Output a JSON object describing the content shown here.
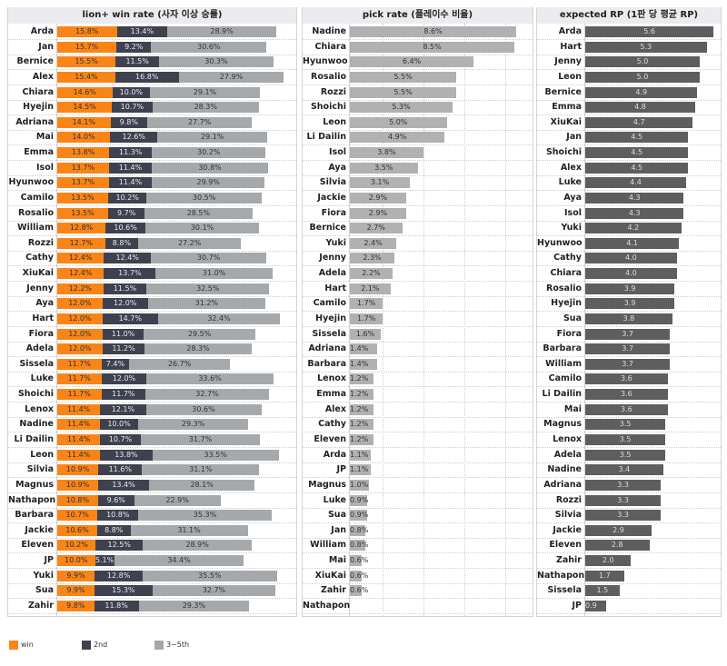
{
  "chart_data": [
    {
      "type": "bar",
      "orientation": "horizontal",
      "stacked": true,
      "title": "lion+ win rate (사자 이상 승률)",
      "categories": [
        "Arda",
        "Jan",
        "Bernice",
        "Alex",
        "Chiara",
        "Hyejin",
        "Adriana",
        "Mai",
        "Emma",
        "Isol",
        "Hyunwoo",
        "Camilo",
        "Rosalio",
        "William",
        "Rozzi",
        "Cathy",
        "XiuKai",
        "Jenny",
        "Aya",
        "Hart",
        "Fiora",
        "Adela",
        "Sissela",
        "Luke",
        "Shoichi",
        "Lenox",
        "Nadine",
        "Li Dailin",
        "Leon",
        "Silvia",
        "Magnus",
        "Nathapon",
        "Barbara",
        "Jackie",
        "Eleven",
        "JP",
        "Yuki",
        "Sua",
        "Zahir"
      ],
      "series": [
        {
          "name": "win",
          "color": "#fa8517",
          "values": [
            15.8,
            15.7,
            15.5,
            15.4,
            14.6,
            14.5,
            14.1,
            14.0,
            13.8,
            13.7,
            13.7,
            13.5,
            13.5,
            12.8,
            12.7,
            12.4,
            12.4,
            12.2,
            12.0,
            12.0,
            12.0,
            12.0,
            11.7,
            11.7,
            11.7,
            11.4,
            11.4,
            11.4,
            11.4,
            10.9,
            10.9,
            10.8,
            10.7,
            10.6,
            10.2,
            10.0,
            9.9,
            9.9,
            9.8
          ]
        },
        {
          "name": "2nd",
          "color": "#40414e",
          "values": [
            13.4,
            9.2,
            11.5,
            16.8,
            10.0,
            10.7,
            9.8,
            12.6,
            11.3,
            11.4,
            11.4,
            10.2,
            9.7,
            10.6,
            8.8,
            12.4,
            13.7,
            11.5,
            12.0,
            14.7,
            11.0,
            11.2,
            7.4,
            12.0,
            11.7,
            12.1,
            10.0,
            10.7,
            13.8,
            11.6,
            13.4,
            9.6,
            10.8,
            8.8,
            12.5,
            5.1,
            12.8,
            15.3,
            11.8
          ]
        },
        {
          "name": "3~5th",
          "color": "#a6a9ac",
          "values": [
            28.9,
            30.6,
            30.3,
            27.9,
            29.1,
            28.3,
            27.7,
            29.1,
            30.2,
            30.8,
            29.9,
            30.5,
            28.5,
            30.1,
            27.2,
            30.7,
            31.0,
            32.5,
            31.2,
            32.4,
            29.5,
            28.3,
            26.7,
            33.6,
            32.7,
            30.6,
            29.3,
            31.7,
            33.5,
            31.1,
            28.1,
            22.9,
            35.3,
            31.1,
            28.9,
            34.4,
            35.5,
            32.7,
            29.3
          ]
        }
      ],
      "legend": "bottom-left"
    },
    {
      "type": "bar",
      "orientation": "horizontal",
      "title": "pick rate (플레이수 비율)",
      "color": "#b1b1b1",
      "categories": [
        "Nadine",
        "Chiara",
        "Hyunwoo",
        "Rosalio",
        "Rozzi",
        "Shoichi",
        "Leon",
        "Li Dailin",
        "Isol",
        "Aya",
        "Silvia",
        "Jackie",
        "Fiora",
        "Bernice",
        "Yuki",
        "Jenny",
        "Adela",
        "Hart",
        "Camilo",
        "Hyejin",
        "Sissela",
        "Adriana",
        "Barbara",
        "Lenox",
        "Emma",
        "Alex",
        "Cathy",
        "Eleven",
        "Arda",
        "JP",
        "Magnus",
        "Luke",
        "Sua",
        "Jan",
        "William",
        "Mai",
        "XiuKai",
        "Zahir",
        "Nathapon"
      ],
      "values": [
        8.6,
        8.5,
        6.4,
        5.5,
        5.5,
        5.3,
        5.0,
        4.9,
        3.8,
        3.5,
        3.1,
        2.9,
        2.9,
        2.7,
        2.4,
        2.3,
        2.2,
        2.1,
        1.7,
        1.7,
        1.6,
        1.4,
        1.4,
        1.2,
        1.2,
        1.2,
        1.2,
        1.2,
        1.1,
        1.1,
        1.0,
        0.9,
        0.9,
        0.8,
        0.8,
        0.6,
        0.6,
        0.6,
        null
      ],
      "labels": [
        "8.6%",
        "8.5%",
        "6.4%",
        "5.5%",
        "5.5%",
        "5.3%",
        "5.0%",
        "4.9%",
        "3.8%",
        "3.5%",
        "3.1%",
        "2.9%",
        "2.9%",
        "2.7%",
        "2.4%",
        "2.3%",
        "2.2%",
        "2.1%",
        "1.7%",
        "1.7%",
        "1.6%",
        "1.4%",
        "1.4%",
        "1.2%",
        "1.2%",
        "1.2%",
        "1.2%",
        "1.2%",
        "1.1%",
        "1.1%",
        "1.0%",
        "0.9%",
        "0.9%",
        "0.8%",
        "0.8%",
        "0.6%",
        "0.6%",
        "0.6%",
        ""
      ]
    },
    {
      "type": "bar",
      "orientation": "horizontal",
      "title": "expected RP (1판 당 평균 RP)",
      "color": "#5e5e5e",
      "categories": [
        "Arda",
        "Hart",
        "Jenny",
        "Leon",
        "Bernice",
        "Emma",
        "XiuKai",
        "Jan",
        "Shoichi",
        "Alex",
        "Luke",
        "Aya",
        "Isol",
        "Yuki",
        "Hyunwoo",
        "Cathy",
        "Chiara",
        "Rosalio",
        "Hyejin",
        "Sua",
        "Fiora",
        "Barbara",
        "William",
        "Camilo",
        "Li Dailin",
        "Mai",
        "Magnus",
        "Lenox",
        "Adela",
        "Nadine",
        "Adriana",
        "Rozzi",
        "Silvia",
        "Jackie",
        "Eleven",
        "Zahir",
        "Nathapon",
        "Sissela",
        "JP"
      ],
      "values": [
        5.6,
        5.3,
        5.0,
        5.0,
        4.9,
        4.8,
        4.7,
        4.5,
        4.5,
        4.5,
        4.4,
        4.3,
        4.3,
        4.2,
        4.1,
        4.0,
        4.0,
        3.9,
        3.9,
        3.8,
        3.7,
        3.7,
        3.7,
        3.6,
        3.6,
        3.6,
        3.5,
        3.5,
        3.5,
        3.4,
        3.3,
        3.3,
        3.3,
        2.9,
        2.8,
        2.0,
        1.7,
        1.5,
        0.9
      ],
      "labels": [
        "5.6",
        "5.3",
        "5.0",
        "5.0",
        "4.9",
        "4.8",
        "4.7",
        "4.5",
        "4.5",
        "4.5",
        "4.4",
        "4.3",
        "4.3",
        "4.2",
        "4.1",
        "4.0",
        "4.0",
        "3.9",
        "3.9",
        "3.8",
        "3.7",
        "3.7",
        "3.7",
        "3.6",
        "3.6",
        "3.6",
        "3.5",
        "3.5",
        "3.5",
        "3.4",
        "3.3",
        "3.3",
        "3.3",
        "2.9",
        "2.8",
        "2.0",
        "1.7",
        "1.5",
        "0.9"
      ]
    }
  ]
}
